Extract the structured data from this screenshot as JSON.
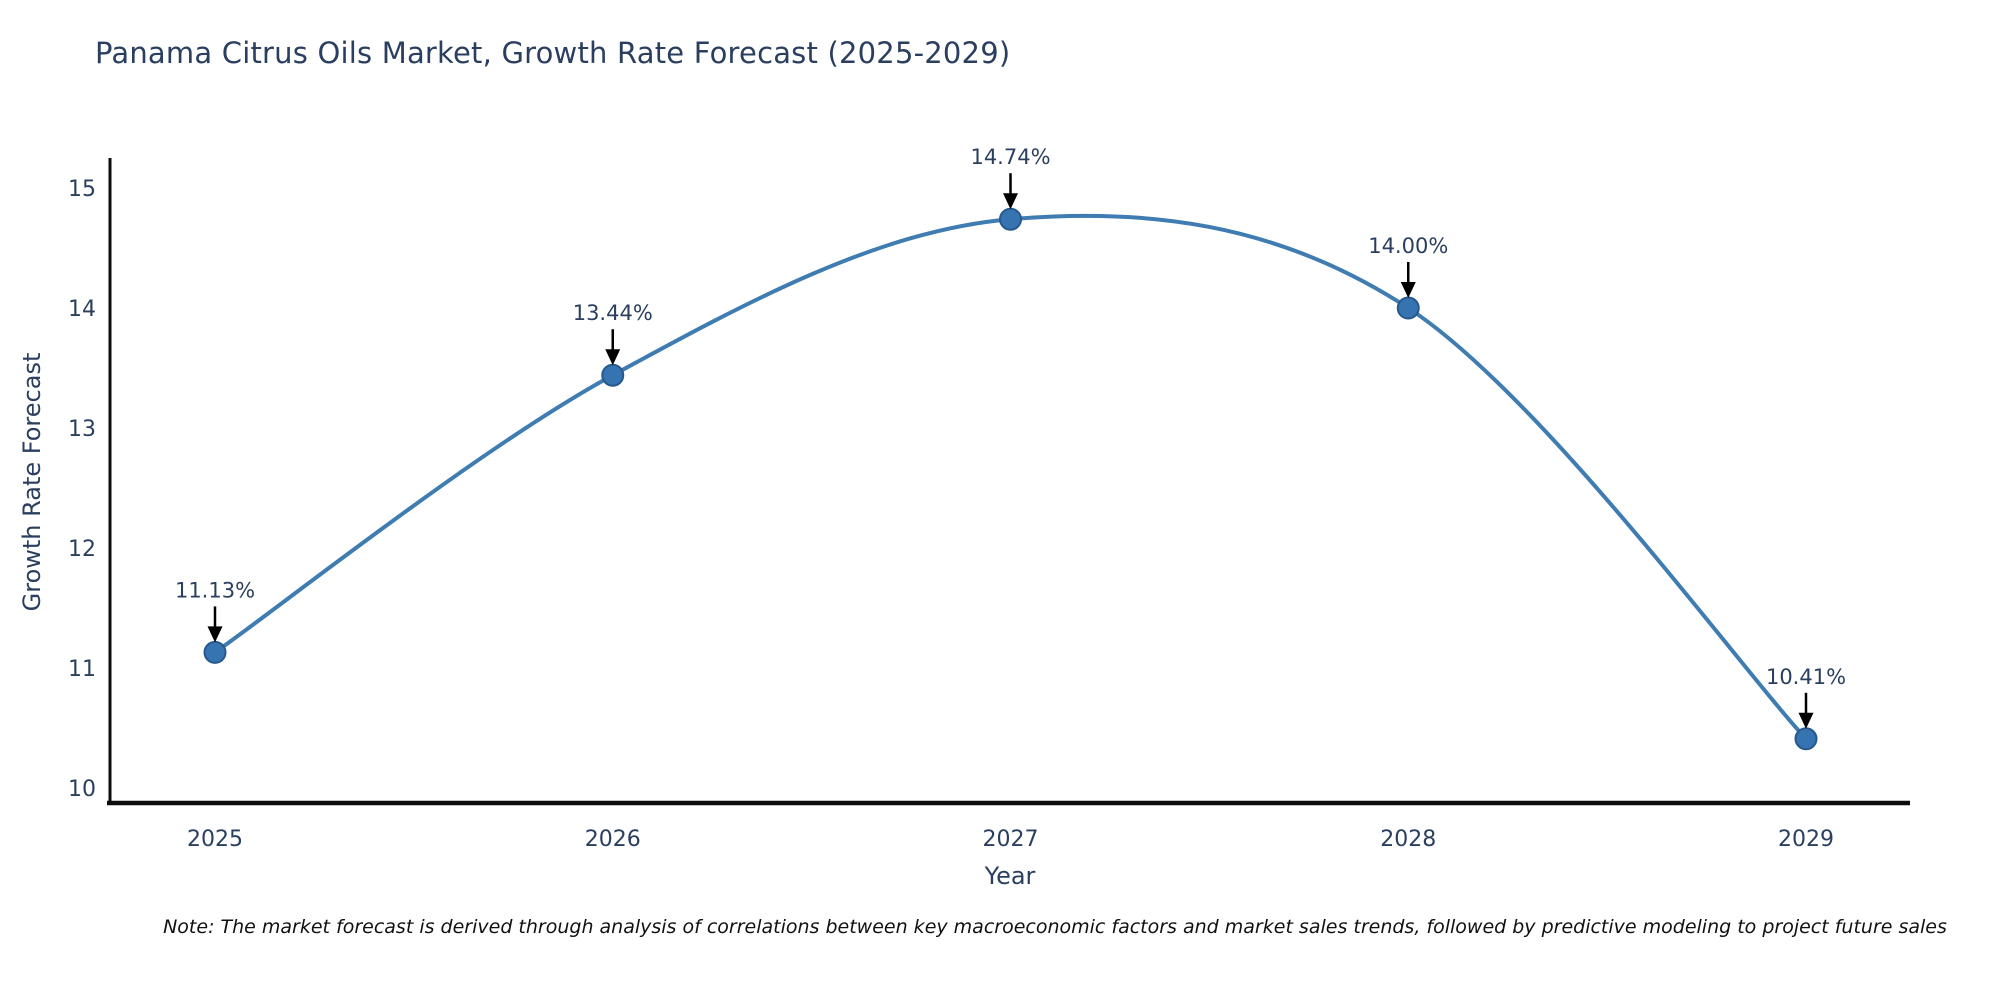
{
  "chart": {
    "title": "Panama Citrus Oils Market, Growth Rate Forecast (2025-2029)",
    "note": "Note: The market forecast is derived through analysis of correlations between key macroeconomic factors and market sales trends, followed by predictive modeling to project future sales"
  },
  "chart_data": {
    "type": "line",
    "title": "Panama Citrus Oils Market, Growth Rate Forecast (2025-2029)",
    "x": [
      2025,
      2026,
      2027,
      2028,
      2029
    ],
    "values": [
      11.13,
      13.44,
      14.74,
      14.0,
      10.41
    ],
    "point_labels": [
      "11.13%",
      "13.44%",
      "14.74%",
      "14.00%",
      "10.41%"
    ],
    "xlabel": "Year",
    "ylabel": "Growth Rate Forecast",
    "ylim": [
      10,
      15
    ],
    "yticks": [
      10,
      11,
      12,
      13,
      14,
      15
    ],
    "xtick_labels": [
      "2025",
      "2026",
      "2027",
      "2028",
      "2029"
    ],
    "line_shape": "spline",
    "grid": false,
    "legend": false,
    "annotation_style": "value label with downward arrow to point",
    "colors": {
      "line": "#3E7CB1",
      "marker_fill": "#3573B1",
      "marker_border": "#27598C",
      "text": "#2a3f5f",
      "axis_line": "#0d0d0d",
      "annotation_arrow": "#000000",
      "background": "#ffffff"
    }
  }
}
